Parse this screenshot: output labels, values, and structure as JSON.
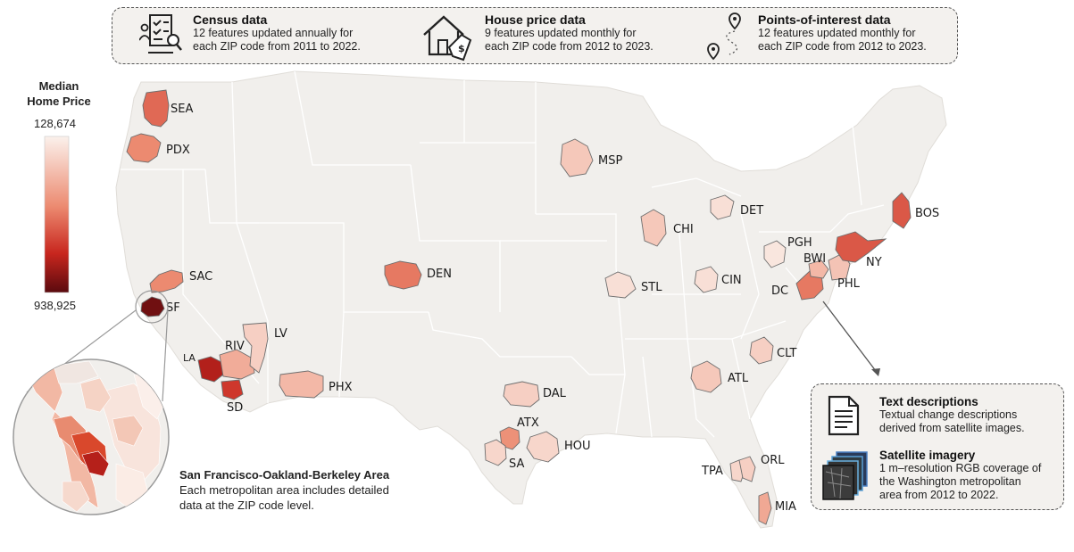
{
  "header": {
    "items": [
      {
        "title": "Census data",
        "line1": "12 features updated annually for",
        "line2": "each ZIP code from 2011 to 2022.",
        "icon": "census-document-icon"
      },
      {
        "title": "House price data",
        "line1": "9 features updated monthly for",
        "line2": "each ZIP code from 2012 to 2023.",
        "icon": "house-price-icon"
      },
      {
        "title": "Points-of-interest data",
        "line1": "12 features updated monthly for",
        "line2": "each ZIP code from 2012 to 2023.",
        "icon": "map-pin-route-icon"
      }
    ]
  },
  "legend": {
    "title_line1": "Median",
    "title_line2": "Home Price",
    "min_label": "128,674",
    "max_label": "938,925",
    "min_color": "#fbf1ec",
    "mid_color": "#ec8a70",
    "high_color": "#c8261e",
    "max_color": "#5a0a0e"
  },
  "metros": [
    {
      "code": "SEA",
      "value": 0.55
    },
    {
      "code": "PDX",
      "value": 0.45
    },
    {
      "code": "SAC",
      "value": 0.45
    },
    {
      "code": "SF",
      "value": 0.95
    },
    {
      "code": "LA",
      "value": 0.8
    },
    {
      "code": "RIV",
      "value": 0.3
    },
    {
      "code": "SD",
      "value": 0.7
    },
    {
      "code": "LV",
      "value": 0.15
    },
    {
      "code": "PHX",
      "value": 0.25
    },
    {
      "code": "DEN",
      "value": 0.5
    },
    {
      "code": "MSP",
      "value": 0.18
    },
    {
      "code": "DAL",
      "value": 0.15
    },
    {
      "code": "ATX",
      "value": 0.42
    },
    {
      "code": "SA",
      "value": 0.12
    },
    {
      "code": "HOU",
      "value": 0.12
    },
    {
      "code": "CHI",
      "value": 0.18
    },
    {
      "code": "STL",
      "value": 0.08
    },
    {
      "code": "DET",
      "value": 0.08
    },
    {
      "code": "CIN",
      "value": 0.08
    },
    {
      "code": "PGH",
      "value": 0.05
    },
    {
      "code": "ATL",
      "value": 0.18
    },
    {
      "code": "CLT",
      "value": 0.15
    },
    {
      "code": "TPA",
      "value": 0.12
    },
    {
      "code": "ORL",
      "value": 0.15
    },
    {
      "code": "MIA",
      "value": 0.32
    },
    {
      "code": "DC",
      "value": 0.5
    },
    {
      "code": "BWI",
      "value": 0.25
    },
    {
      "code": "PHL",
      "value": 0.2
    },
    {
      "code": "NY",
      "value": 0.6
    },
    {
      "code": "BOS",
      "value": 0.6
    }
  ],
  "inset": {
    "title": "San Francisco-Oakland-Berkeley Area",
    "line1": "Each metropolitan area includes detailed",
    "line2": "data at the ZIP code level."
  },
  "info_box": {
    "text_title": "Text descriptions",
    "text_line1": "Textual change descriptions",
    "text_line2": "derived from satellite images.",
    "sat_title": "Satellite imagery",
    "sat_line1": "1 m–resolution RGB coverage of",
    "sat_line2": "the Washington metropolitan",
    "sat_line3": "area from 2012 to 2022."
  }
}
